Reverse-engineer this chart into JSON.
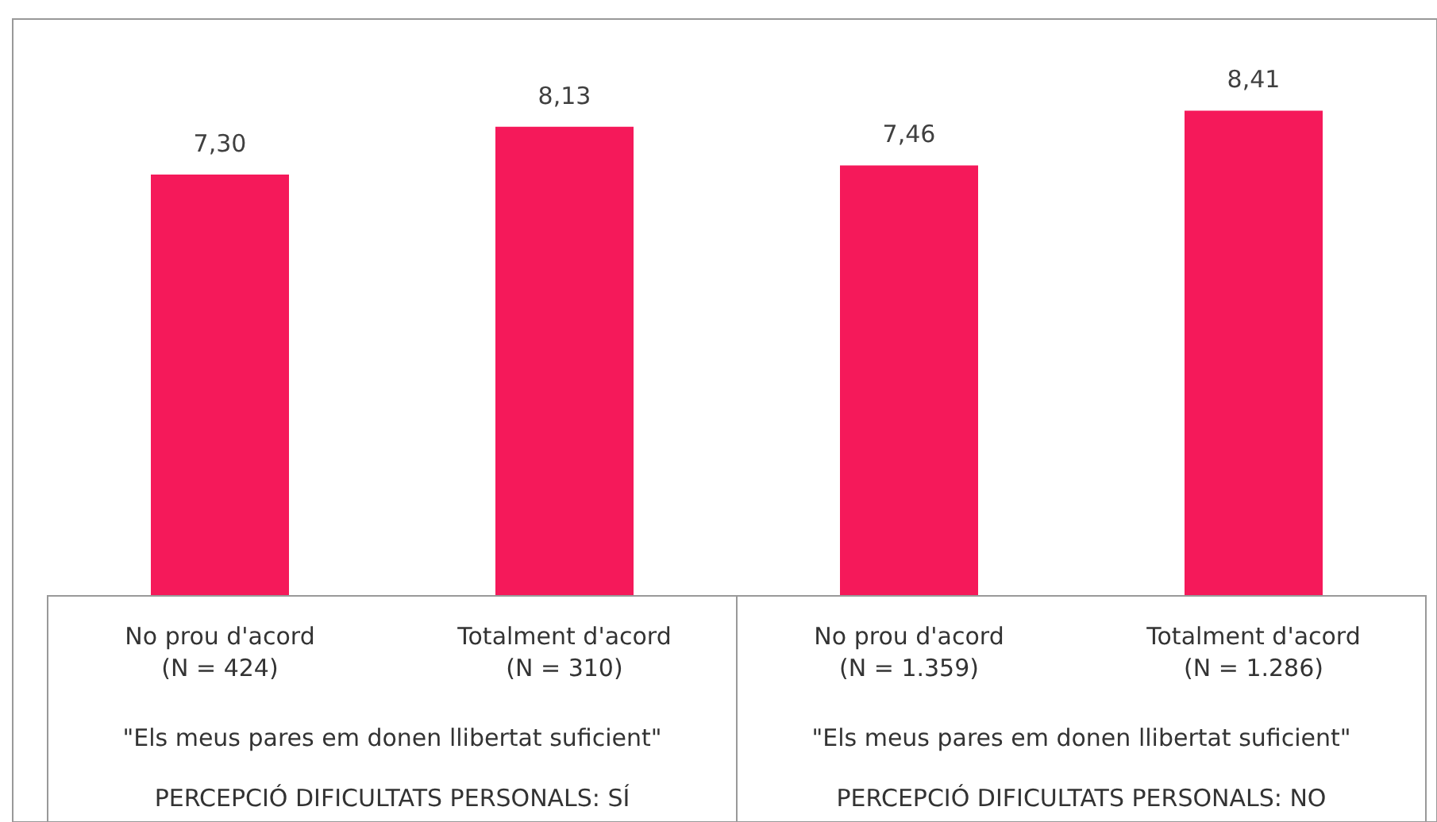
{
  "chart_data": {
    "type": "bar",
    "categories": [
      "No prou d'acord\n(N = 424)",
      "Totalment d'acord\n(N = 310)",
      "No prou d'acord\n(N = 1.359)",
      "Totalment d'acord\n(N = 1.286)"
    ],
    "values": [
      7.3,
      8.13,
      7.46,
      8.41
    ],
    "value_labels": [
      "7,30",
      "8,13",
      "7,46",
      "8,41"
    ],
    "color": "#f5195a",
    "annotations": [
      "\"Els meus pares em donen llibertat suficient\"",
      "PERCEPCIÓ DIFICULTATS PERSONALS: SÍ",
      "\"Els meus pares em donen llibertat suficient\"",
      "PERCEPCIÓ DIFICULTATS PERSONALS: NO"
    ],
    "grid": false
  }
}
